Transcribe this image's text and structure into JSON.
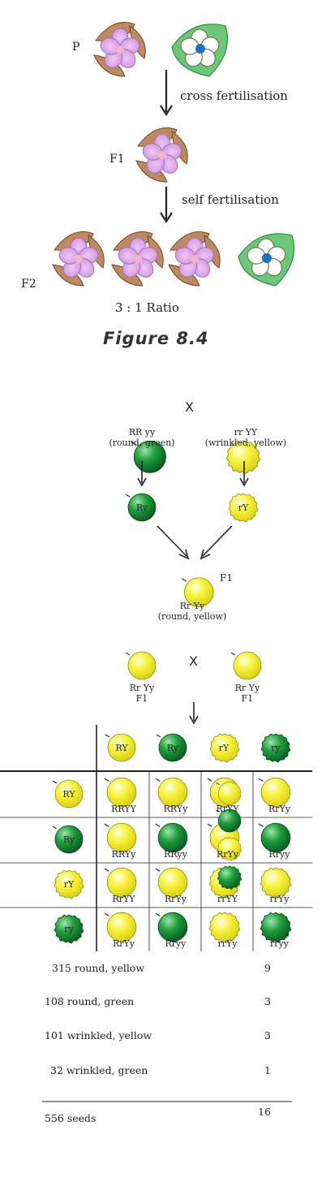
{
  "figure84": {
    "p_label": "P",
    "cross_label": "cross fertilisation",
    "f1_label": "F1",
    "self_label": "self fertilisation",
    "f2_label": "F2",
    "ratio": "3 : 1 Ratio",
    "caption": "Figure 8.4"
  },
  "dihybrid": {
    "x_symbol": "X",
    "parent1_genotype": "RR yy",
    "parent1_traits": "(round, green)",
    "parent2_genotype": "rr YY",
    "parent2_traits": "(wrinkled, yellow)",
    "gamete1": "Ry",
    "gamete2": "rY",
    "f1_tag": "F1",
    "f1_genotype": "Rr Yy",
    "f1_traits": "(round, yellow)",
    "cross_left_genotype": "Rr Yy",
    "cross_left_gen": "F1",
    "cross_right_genotype": "Rr Yy",
    "cross_right_gen": "F1"
  },
  "punnett": {
    "col_gametes": [
      "RY",
      "Ry",
      "rY",
      "ry"
    ],
    "row_gametes": [
      "RY",
      "Ry",
      "rY",
      "ry"
    ],
    "cells": [
      [
        "RRYY",
        "RRYy",
        "RrYY",
        "RrYy"
      ],
      [
        "RRYy",
        "RRyy",
        "RrYy",
        "Rryy"
      ],
      [
        "RrYY",
        "RrYy",
        "rrYY",
        "rrYy"
      ],
      [
        "RrYy",
        "Rryy",
        "rrYy",
        "rryy"
      ]
    ]
  },
  "summary": {
    "rows": [
      {
        "label": "315 round, yellow",
        "ratio": "9"
      },
      {
        "label": "108 round, green",
        "ratio": "3"
      },
      {
        "label": "101 wrinkled, yellow",
        "ratio": "3"
      },
      {
        "label": "32 wrinkled, green",
        "ratio": "1"
      }
    ],
    "total_label": "556 seeds",
    "total_ratio": "16"
  },
  "colors": {
    "pink_flower": "#d9a6e6",
    "pink_center": "#f4b6c6",
    "leaf_brown": "#b07a52",
    "leaf_green": "#5cc06a",
    "white_flower": "#ffffff",
    "blue_center": "#1f6fc4",
    "seed_yellow": "#f2ee2a",
    "seed_green": "#1e9a3c"
  }
}
